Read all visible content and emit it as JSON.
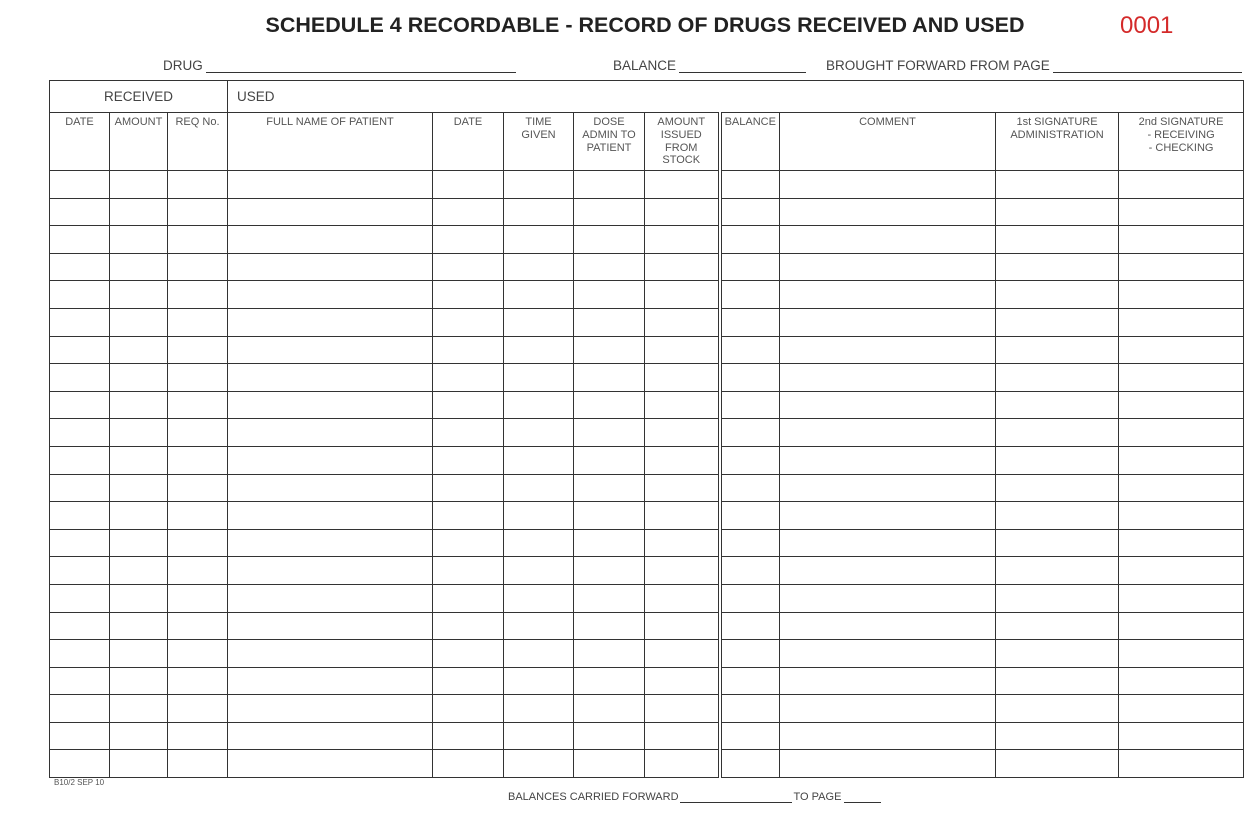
{
  "title": "SCHEDULE 4 RECORDABLE - RECORD OF DRUGS RECEIVED AND USED",
  "serial_number": "0001",
  "serial_color": "#d42a2a",
  "fields": {
    "drug_label": "DRUG",
    "drug_value": "",
    "balance_label": "BALANCE",
    "balance_value": "",
    "brought_forward_label": "BROUGHT FORWARD FROM PAGE",
    "brought_forward_value": ""
  },
  "table": {
    "groups": {
      "received": "RECEIVED",
      "used": "USED"
    },
    "columns": [
      "DATE",
      "AMOUNT",
      "REQ No.",
      "FULL NAME OF PATIENT",
      "DATE",
      "TIME\nGIVEN",
      "DOSE\nADMIN TO\nPATIENT",
      "AMOUNT\nISSUED\nFROM\nSTOCK",
      "BALANCE",
      "COMMENT",
      "1st SIGNATURE\nADMINISTRATION",
      "2nd SIGNATURE\n- RECEIVING\n- CHECKING"
    ]
  },
  "footer": {
    "form_code": "B10/2 SEP 10",
    "carried_forward_label": "BALANCES CARRIED FORWARD",
    "carried_forward_value": "",
    "to_page_label": "TO PAGE",
    "to_page_value": ""
  }
}
